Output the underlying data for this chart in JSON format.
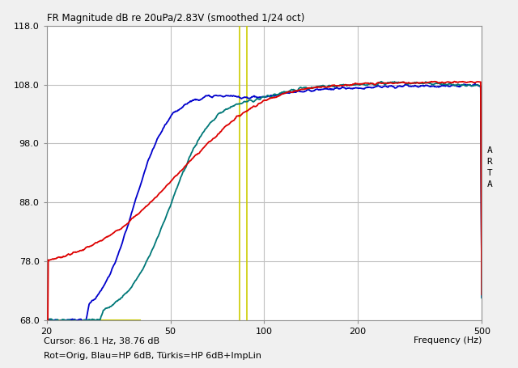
{
  "title": "FR Magnitude dB re 20uPa/2.83V (smoothed 1/24 oct)",
  "xlabel": "Frequency (Hz)",
  "cursor_text": "Cursor: 86.1 Hz, 38.76 dB",
  "legend_text": "Rot=Orig, Blau=HP 6dB, Türkis=HP 6dB+ImpLin",
  "arta_label": "A\nR\nT\nA",
  "ylim": [
    68.0,
    118.0
  ],
  "xlim": [
    20,
    500
  ],
  "yticks": [
    68.0,
    78.0,
    88.0,
    98.0,
    108.0,
    118.0
  ],
  "xticks": [
    20,
    50,
    100,
    200,
    500
  ],
  "cursor_x": 86.1,
  "grid_color": "#c0c0c0",
  "bg_color": "#f0f0f0",
  "plot_bg": "#ffffff",
  "red_color": "#dd0000",
  "blue_color": "#0000cc",
  "teal_color": "#007878",
  "yellow_color": "#cccc00",
  "line_width": 1.3
}
